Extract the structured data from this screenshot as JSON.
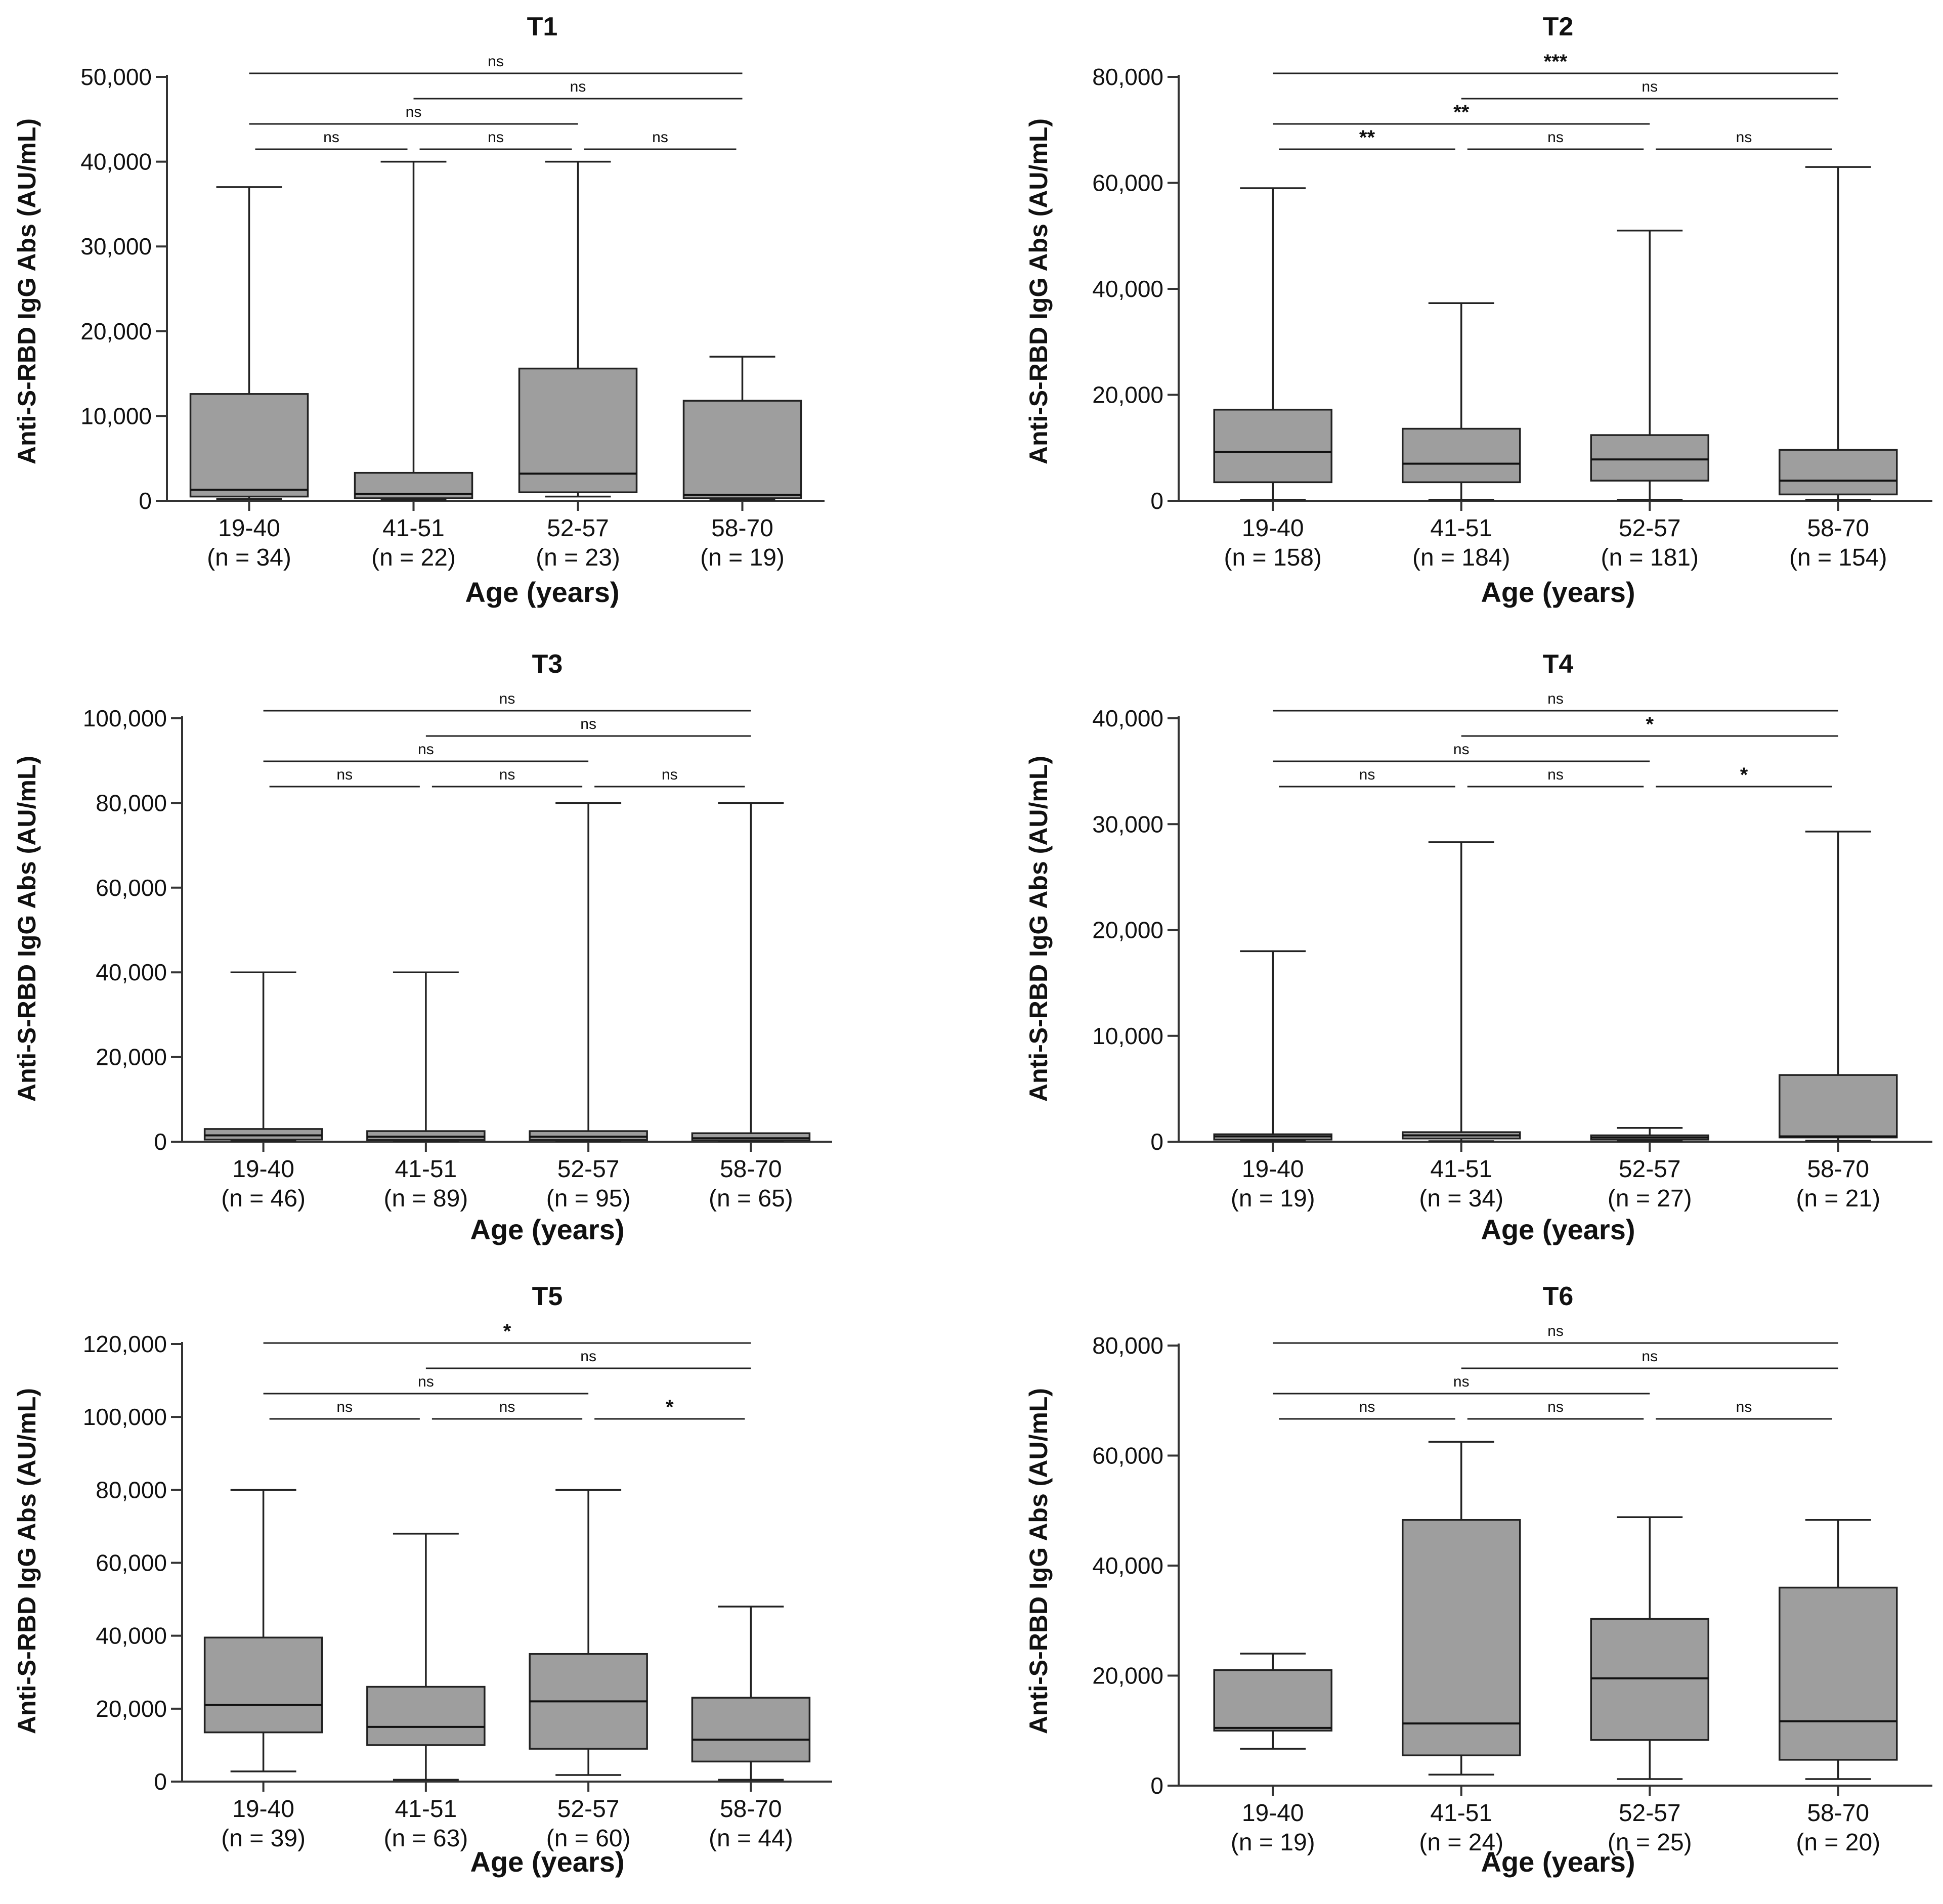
{
  "chart_data": [
    {
      "type": "box",
      "title": "T1",
      "ylabel": "Anti-S-RBD IgG Abs (AU/mL)",
      "xlabel": "Age (years)",
      "ylim": [
        0,
        50000
      ],
      "yticks": [
        0,
        10000,
        20000,
        30000,
        40000,
        50000
      ],
      "ytick_labels": [
        "0",
        "10,000",
        "20,000",
        "30,000",
        "40,000",
        "50,000"
      ],
      "categories": [
        "19-40",
        "41-51",
        "52-57",
        "58-70"
      ],
      "n_labels": [
        "(n = 34)",
        "(n = 22)",
        "(n = 23)",
        "(n = 19)"
      ],
      "boxes": [
        {
          "min": 200,
          "q1": 500,
          "median": 1300,
          "q3": 12600,
          "max": 37000
        },
        {
          "min": 100,
          "q1": 300,
          "median": 800,
          "q3": 3300,
          "max": 40000
        },
        {
          "min": 500,
          "q1": 1000,
          "median": 3200,
          "q3": 15600,
          "max": 40000
        },
        {
          "min": 100,
          "q1": 300,
          "median": 700,
          "q3": 11800,
          "max": 17000
        }
      ],
      "comparisons": [
        {
          "from": 0,
          "to": 3,
          "label": "ns"
        },
        {
          "from": 1,
          "to": 3,
          "label": "ns"
        },
        {
          "from": 0,
          "to": 2,
          "label": "ns"
        },
        {
          "from": 0,
          "to": 1,
          "label": "ns"
        },
        {
          "from": 1,
          "to": 2,
          "label": "ns"
        },
        {
          "from": 2,
          "to": 3,
          "label": "ns"
        }
      ]
    },
    {
      "type": "box",
      "title": "T2",
      "ylabel": "Anti-S-RBD IgG Abs (AU/mL)",
      "xlabel": "Age (years)",
      "ylim": [
        0,
        80000
      ],
      "yticks": [
        0,
        20000,
        40000,
        60000,
        80000
      ],
      "ytick_labels": [
        "0",
        "20,000",
        "40,000",
        "60,000",
        "80,000"
      ],
      "categories": [
        "19-40",
        "41-51",
        "52-57",
        "58-70"
      ],
      "n_labels": [
        "(n = 158)",
        "(n = 184)",
        "(n = 181)",
        "(n = 154)"
      ],
      "boxes": [
        {
          "min": 200,
          "q1": 3500,
          "median": 9200,
          "q3": 17200,
          "max": 59000
        },
        {
          "min": 200,
          "q1": 3500,
          "median": 7000,
          "q3": 13600,
          "max": 37300
        },
        {
          "min": 200,
          "q1": 3800,
          "median": 7800,
          "q3": 12400,
          "max": 51000
        },
        {
          "min": 200,
          "q1": 1200,
          "median": 3800,
          "q3": 9600,
          "max": 63000
        }
      ],
      "comparisons": [
        {
          "from": 0,
          "to": 3,
          "label": "***"
        },
        {
          "from": 1,
          "to": 3,
          "label": "ns"
        },
        {
          "from": 0,
          "to": 2,
          "label": "**"
        },
        {
          "from": 0,
          "to": 1,
          "label": "**"
        },
        {
          "from": 1,
          "to": 2,
          "label": "ns"
        },
        {
          "from": 2,
          "to": 3,
          "label": "ns"
        }
      ]
    },
    {
      "type": "box",
      "title": "T3",
      "ylabel": "Anti-S-RBD IgG Abs (AU/mL)",
      "xlabel": "Age (years)",
      "ylim": [
        0,
        100000
      ],
      "yticks": [
        0,
        20000,
        40000,
        60000,
        80000,
        100000
      ],
      "ytick_labels": [
        "0",
        "20,000",
        "40,000",
        "60,000",
        "80,000",
        "100,000"
      ],
      "categories": [
        "19-40",
        "41-51",
        "52-57",
        "58-70"
      ],
      "n_labels": [
        "(n = 46)",
        "(n = 89)",
        "(n = 95)",
        "(n = 65)"
      ],
      "boxes": [
        {
          "min": 100,
          "q1": 500,
          "median": 1500,
          "q3": 3000,
          "max": 40000
        },
        {
          "min": 100,
          "q1": 400,
          "median": 1200,
          "q3": 2500,
          "max": 40000
        },
        {
          "min": 100,
          "q1": 400,
          "median": 1200,
          "q3": 2500,
          "max": 80000
        },
        {
          "min": 100,
          "q1": 300,
          "median": 800,
          "q3": 2000,
          "max": 80000
        }
      ],
      "comparisons": [
        {
          "from": 0,
          "to": 3,
          "label": "ns"
        },
        {
          "from": 1,
          "to": 3,
          "label": "ns"
        },
        {
          "from": 0,
          "to": 2,
          "label": "ns"
        },
        {
          "from": 0,
          "to": 1,
          "label": "ns"
        },
        {
          "from": 1,
          "to": 2,
          "label": "ns"
        },
        {
          "from": 2,
          "to": 3,
          "label": "ns"
        }
      ]
    },
    {
      "type": "box",
      "title": "T4",
      "ylabel": "Anti-S-RBD IgG Abs (AU/mL)",
      "xlabel": "Age (years)",
      "ylim": [
        0,
        40000
      ],
      "yticks": [
        0,
        10000,
        20000,
        30000,
        40000
      ],
      "ytick_labels": [
        "0",
        "10,000",
        "20,000",
        "30,000",
        "40,000"
      ],
      "categories": [
        "19-40",
        "41-51",
        "52-57",
        "58-70"
      ],
      "n_labels": [
        "(n = 19)",
        "(n = 34)",
        "(n = 27)",
        "(n = 21)"
      ],
      "boxes": [
        {
          "min": 50,
          "q1": 200,
          "median": 500,
          "q3": 700,
          "max": 18000
        },
        {
          "min": 50,
          "q1": 300,
          "median": 600,
          "q3": 900,
          "max": 28300
        },
        {
          "min": 50,
          "q1": 200,
          "median": 400,
          "q3": 600,
          "max": 1300
        },
        {
          "min": 100,
          "q1": 400,
          "median": 500,
          "q3": 6300,
          "max": 29300
        }
      ],
      "comparisons": [
        {
          "from": 0,
          "to": 3,
          "label": "ns"
        },
        {
          "from": 1,
          "to": 3,
          "label": "*"
        },
        {
          "from": 0,
          "to": 2,
          "label": "ns"
        },
        {
          "from": 0,
          "to": 1,
          "label": "ns"
        },
        {
          "from": 1,
          "to": 2,
          "label": "ns"
        },
        {
          "from": 2,
          "to": 3,
          "label": "*"
        }
      ]
    },
    {
      "type": "box",
      "title": "T5",
      "ylabel": "Anti-S-RBD IgG Abs (AU/mL)",
      "xlabel": "Age (years)",
      "ylim": [
        0,
        120000
      ],
      "yticks": [
        0,
        20000,
        40000,
        60000,
        80000,
        100000,
        120000
      ],
      "ytick_labels": [
        "0",
        "20,000",
        "40,000",
        "60,000",
        "80,000",
        "100,000",
        "120,000"
      ],
      "categories": [
        "19-40",
        "41-51",
        "52-57",
        "58-70"
      ],
      "n_labels": [
        "(n = 39)",
        "(n = 63)",
        "(n = 60)",
        "(n = 44)"
      ],
      "boxes": [
        {
          "min": 2800,
          "q1": 13500,
          "median": 21000,
          "q3": 39500,
          "max": 80000
        },
        {
          "min": 500,
          "q1": 10000,
          "median": 15000,
          "q3": 26000,
          "max": 68000
        },
        {
          "min": 1800,
          "q1": 9000,
          "median": 22000,
          "q3": 35000,
          "max": 80000
        },
        {
          "min": 500,
          "q1": 5500,
          "median": 11500,
          "q3": 23000,
          "max": 48000
        }
      ],
      "comparisons": [
        {
          "from": 0,
          "to": 3,
          "label": "*"
        },
        {
          "from": 1,
          "to": 3,
          "label": "ns"
        },
        {
          "from": 0,
          "to": 2,
          "label": "ns"
        },
        {
          "from": 0,
          "to": 1,
          "label": "ns"
        },
        {
          "from": 1,
          "to": 2,
          "label": "ns"
        },
        {
          "from": 2,
          "to": 3,
          "label": "*"
        }
      ]
    },
    {
      "type": "box",
      "title": "T6",
      "ylabel": "Anti-S-RBD IgG Abs (AU/mL)",
      "xlabel": "Age (years)",
      "ylim": [
        0,
        80000
      ],
      "yticks": [
        0,
        20000,
        40000,
        60000,
        80000
      ],
      "ytick_labels": [
        "0",
        "20,000",
        "40,000",
        "60,000",
        "80,000"
      ],
      "categories": [
        "19-40",
        "41-51",
        "52-57",
        "58-70"
      ],
      "n_labels": [
        "(n = 19)",
        "(n = 24)",
        "(n = 25)",
        "(n = 20)"
      ],
      "boxes": [
        {
          "min": 6700,
          "q1": 10000,
          "median": 10500,
          "q3": 21000,
          "max": 24000
        },
        {
          "min": 2000,
          "q1": 5500,
          "median": 11300,
          "q3": 48300,
          "max": 62500
        },
        {
          "min": 1200,
          "q1": 8300,
          "median": 19500,
          "q3": 30300,
          "max": 48800
        },
        {
          "min": 1200,
          "q1": 4700,
          "median": 11700,
          "q3": 36000,
          "max": 48300
        }
      ],
      "comparisons": [
        {
          "from": 0,
          "to": 3,
          "label": "ns"
        },
        {
          "from": 1,
          "to": 3,
          "label": "ns"
        },
        {
          "from": 0,
          "to": 2,
          "label": "ns"
        },
        {
          "from": 0,
          "to": 1,
          "label": "ns"
        },
        {
          "from": 1,
          "to": 2,
          "label": "ns"
        },
        {
          "from": 2,
          "to": 3,
          "label": "ns"
        }
      ]
    }
  ]
}
